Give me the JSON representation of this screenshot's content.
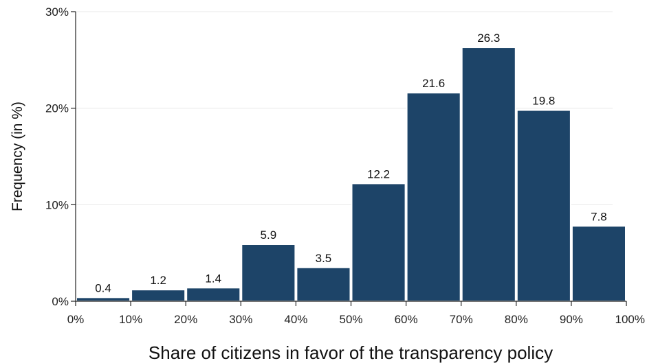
{
  "chart_data": {
    "type": "bar",
    "title": "",
    "xlabel": "Share of citizens in favor of the transparency policy",
    "ylabel": "Frequency (in %)",
    "x_ticks": [
      "0%",
      "10%",
      "20%",
      "30%",
      "40%",
      "50%",
      "60%",
      "70%",
      "80%",
      "90%",
      "100%"
    ],
    "y_ticks": [
      "0%",
      "10%",
      "20%",
      "30%"
    ],
    "bins": [
      [
        0,
        10
      ],
      [
        10,
        20
      ],
      [
        20,
        30
      ],
      [
        30,
        40
      ],
      [
        40,
        50
      ],
      [
        50,
        60
      ],
      [
        60,
        70
      ],
      [
        70,
        80
      ],
      [
        80,
        90
      ],
      [
        90,
        100
      ]
    ],
    "values": [
      0.4,
      1.2,
      1.4,
      5.9,
      3.5,
      12.2,
      21.6,
      26.3,
      19.8,
      7.8
    ],
    "value_labels": [
      "0.4",
      "1.2",
      "1.4",
      "5.9",
      "3.5",
      "12.2",
      "21.6",
      "26.3",
      "19.8",
      "7.8"
    ],
    "xlim": [
      0,
      100
    ],
    "ylim": [
      0,
      30
    ],
    "grid": true,
    "bar_color": "#1d4468"
  }
}
